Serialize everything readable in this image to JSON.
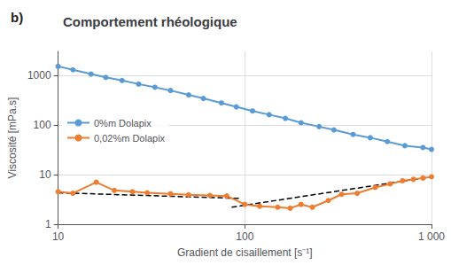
{
  "chart_data": {
    "type": "line",
    "title": "Comportement rhéologique",
    "annotations": [
      {
        "text": "b)"
      }
    ],
    "xlabel": "Gradient de cisaillement [s⁻¹]",
    "ylabel": "Viscosité [mPa.s]",
    "log": true,
    "xlim": [
      10,
      1000
    ],
    "ylim": [
      1,
      3000
    ],
    "xticks": [
      10,
      100,
      {
        "value": 1000,
        "label": "1 000"
      }
    ],
    "yticks": [
      1,
      10,
      100,
      1000
    ],
    "grid": true,
    "legend": "upper left",
    "series": [
      {
        "name": "0%m Dolapix",
        "color": "#5B9BD5",
        "marker": "circle",
        "x": [
          10,
          12,
          15,
          18,
          22,
          27,
          33,
          40,
          50,
          60,
          75,
          90,
          110,
          135,
          165,
          200,
          250,
          300,
          380,
          470,
          580,
          720,
          900,
          1000
        ],
        "values": [
          1500,
          1280,
          1050,
          900,
          780,
          660,
          570,
          490,
          400,
          340,
          275,
          230,
          190,
          160,
          135,
          110,
          92,
          79,
          64,
          55,
          46,
          38,
          35,
          32
        ]
      },
      {
        "name": "0,02%m Dolapix",
        "color": "#ED7D31",
        "marker": "circle",
        "x": [
          10,
          12,
          16,
          20,
          25,
          30,
          40,
          50,
          65,
          80,
          100,
          120,
          150,
          175,
          200,
          230,
          280,
          330,
          400,
          500,
          600,
          700,
          800,
          900,
          1000
        ],
        "values": [
          4.5,
          4.2,
          7.0,
          4.8,
          4.5,
          4.3,
          4.1,
          3.9,
          3.8,
          3.7,
          2.5,
          2.3,
          2.2,
          2.1,
          2.5,
          2.2,
          3.0,
          4.0,
          4.2,
          5.5,
          6.5,
          7.5,
          8.0,
          8.5,
          9.0
        ]
      },
      {
        "color": "#000000",
        "marker": "none",
        "line_style": "dashed",
        "x": [
          10,
          95
        ],
        "values": [
          4.3,
          3.3
        ]
      },
      {
        "color": "#000000",
        "marker": "none",
        "line_style": "dashed",
        "x": [
          85,
          1000
        ],
        "values": [
          2.2,
          9.0
        ]
      }
    ]
  }
}
